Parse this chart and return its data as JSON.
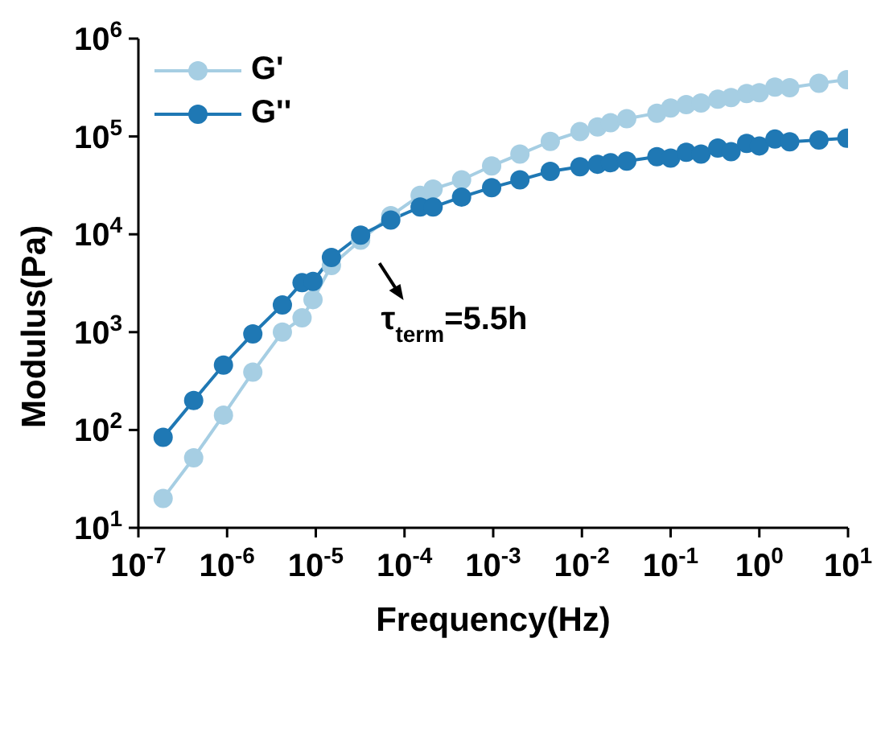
{
  "chart_data": {
    "type": "line",
    "xlabel": "Frequency(Hz)",
    "ylabel": "Modulus(Pa)",
    "log": "xy",
    "xlim": [
      1e-07,
      10
    ],
    "ylim": [
      10,
      1000000
    ],
    "xticks": [
      {
        "value": 1e-07,
        "label": "10$^{-7}$"
      },
      {
        "value": 1e-06,
        "label": "10$^{-6}$"
      },
      {
        "value": 1e-05,
        "label": "10$^{-5}$"
      },
      {
        "value": 0.0001,
        "label": "10$^{-4}$"
      },
      {
        "value": 0.001,
        "label": "10$^{-3}$"
      },
      {
        "value": 0.01,
        "label": "10$^{-2}$"
      },
      {
        "value": 0.1,
        "label": "10$^{-1}$"
      },
      {
        "value": 1,
        "label": "10$^{0}$"
      },
      {
        "value": 10,
        "label": "10$^{1}$"
      }
    ],
    "yticks": [
      {
        "value": 10,
        "label": "10$^{1}$"
      },
      {
        "value": 100,
        "label": "10$^{2}$"
      },
      {
        "value": 1000,
        "label": "10$^{3}$"
      },
      {
        "value": 10000,
        "label": "10$^{4}$"
      },
      {
        "value": 100000,
        "label": "10$^{5}$"
      },
      {
        "value": 1000000,
        "label": "10$^{6}$"
      }
    ],
    "marker": "circle",
    "line_style": "solid",
    "legend": "top left",
    "annotations": [
      {
        "text": "τ$_{term}$=5.5h",
        "x": 5e-05,
        "y": 12000
      }
    ],
    "series": [
      {
        "name": "G'",
        "color": "#a6cee3",
        "x": [
          1.9e-07,
          4.2e-07,
          9.1e-07,
          1.95e-06,
          4.2e-06,
          7e-06,
          9.3e-06,
          1.5e-05,
          3.2e-05,
          7e-05,
          0.00015,
          0.00021,
          0.00044,
          0.00096,
          0.002,
          0.0044,
          0.0095,
          0.015,
          0.021,
          0.032,
          0.07,
          0.1,
          0.15,
          0.22,
          0.34,
          0.48,
          0.72,
          1,
          1.5,
          2.2,
          4.7,
          9.7
        ],
        "values": [
          20,
          52,
          142,
          390,
          1000,
          1400,
          2150,
          4800,
          8700,
          15500,
          25000,
          29000,
          36000,
          50000,
          66000,
          89000,
          112000,
          125000,
          138000,
          152000,
          173000,
          195000,
          212000,
          220000,
          240000,
          250000,
          275000,
          280000,
          320000,
          315000,
          350000,
          380000
        ]
      },
      {
        "name": "G''",
        "color": "#1f78b4",
        "x": [
          1.9e-07,
          4.2e-07,
          9.1e-07,
          1.95e-06,
          4.2e-06,
          7e-06,
          9.3e-06,
          1.5e-05,
          3.2e-05,
          7e-05,
          0.00015,
          0.00021,
          0.00044,
          0.00096,
          0.002,
          0.0044,
          0.0095,
          0.015,
          0.021,
          0.032,
          0.07,
          0.1,
          0.15,
          0.22,
          0.34,
          0.48,
          0.72,
          1,
          1.5,
          2.2,
          4.7,
          9.7
        ],
        "values": [
          84,
          200,
          460,
          960,
          1900,
          3200,
          3300,
          5800,
          9800,
          14000,
          19000,
          19000,
          24000,
          30000,
          36000,
          44000,
          49000,
          52000,
          54000,
          56000,
          62000,
          60000,
          69000,
          66000,
          76000,
          70000,
          85000,
          80000,
          94000,
          88000,
          92000,
          96000
        ]
      }
    ]
  }
}
